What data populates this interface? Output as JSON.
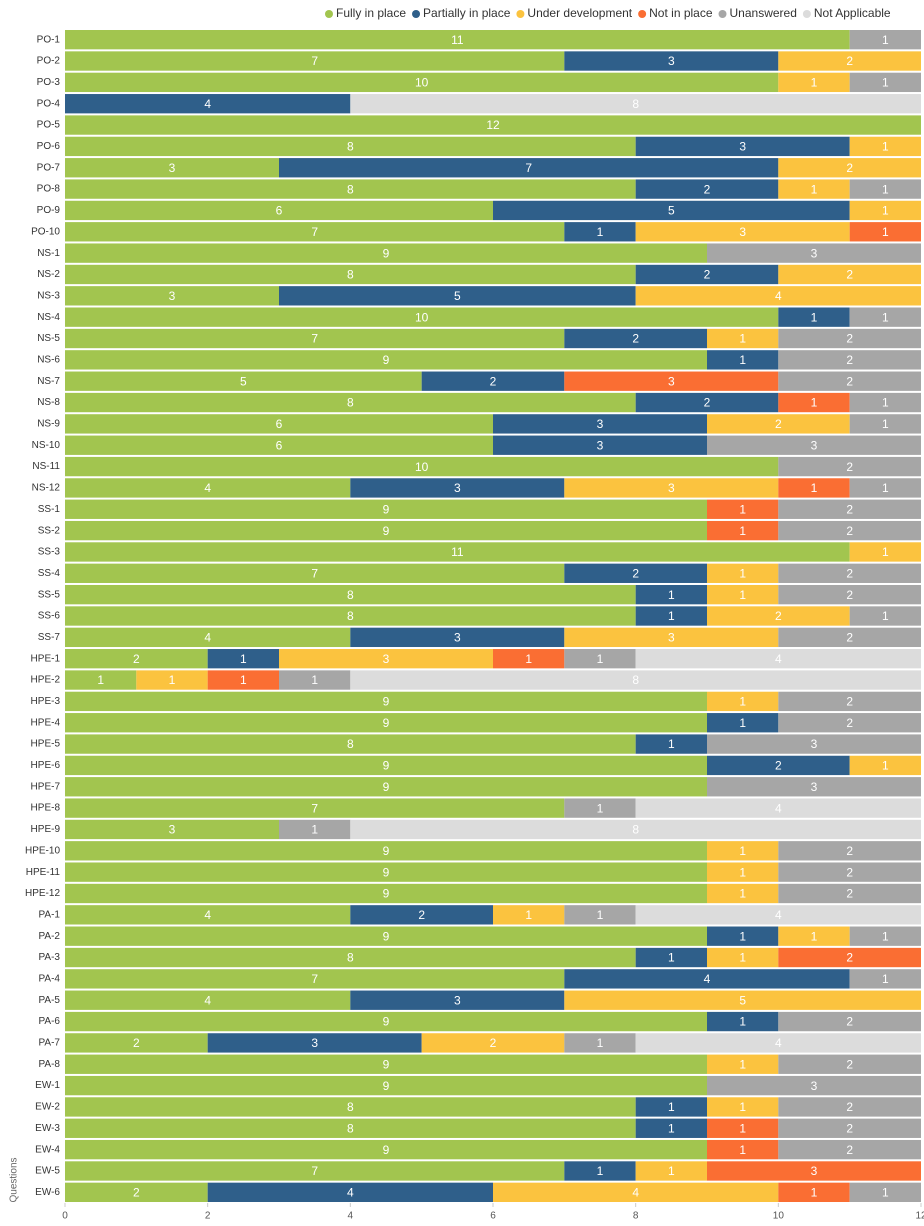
{
  "chart_data": {
    "type": "stacked-bar-horizontal",
    "y_label": "Questions",
    "categories": [
      "PO-1",
      "PO-2",
      "PO-3",
      "PO-4",
      "PO-5",
      "PO-6",
      "PO-7",
      "PO-8",
      "PO-9",
      "PO-10",
      "NS-1",
      "NS-2",
      "NS-3",
      "NS-4",
      "NS-5",
      "NS-6",
      "NS-7",
      "NS-8",
      "NS-9",
      "NS-10",
      "NS-11",
      "NS-12",
      "SS-1",
      "SS-2",
      "SS-3",
      "SS-4",
      "SS-5",
      "SS-6",
      "SS-7",
      "HPE-1",
      "HPE-2",
      "HPE-3",
      "HPE-4",
      "HPE-5",
      "HPE-6",
      "HPE-7",
      "HPE-8",
      "HPE-9",
      "HPE-10",
      "HPE-11",
      "HPE-12",
      "PA-1",
      "PA-2",
      "PA-3",
      "PA-4",
      "PA-5",
      "PA-6",
      "PA-7",
      "PA-8",
      "EW-1",
      "EW-2",
      "EW-3",
      "EW-4",
      "EW-5",
      "EW-6"
    ],
    "series": [
      {
        "name": "Fully in place",
        "color": "#a2c54f",
        "values": [
          11,
          7,
          10,
          null,
          12,
          8,
          3,
          8,
          6,
          7,
          9,
          8,
          3,
          10,
          7,
          9,
          5,
          8,
          6,
          6,
          10,
          4,
          9,
          9,
          11,
          7,
          8,
          8,
          4,
          2,
          1,
          9,
          9,
          8,
          9,
          9,
          7,
          3,
          9,
          9,
          9,
          4,
          9,
          8,
          7,
          4,
          9,
          2,
          9,
          9,
          8,
          8,
          9,
          7,
          2
        ]
      },
      {
        "name": "Partially in place",
        "color": "#2f5f8a",
        "values": [
          null,
          3,
          null,
          4,
          null,
          3,
          7,
          2,
          5,
          1,
          null,
          2,
          5,
          1,
          2,
          1,
          2,
          2,
          3,
          3,
          null,
          3,
          null,
          null,
          null,
          2,
          1,
          1,
          3,
          1,
          null,
          null,
          1,
          1,
          2,
          null,
          null,
          null,
          null,
          null,
          null,
          2,
          1,
          1,
          4,
          3,
          1,
          3,
          null,
          null,
          1,
          1,
          null,
          1,
          4
        ]
      },
      {
        "name": "Under development",
        "color": "#fbc33f",
        "values": [
          null,
          2,
          1,
          null,
          null,
          1,
          2,
          1,
          1,
          3,
          null,
          2,
          4,
          null,
          1,
          null,
          null,
          null,
          2,
          null,
          null,
          3,
          null,
          null,
          1,
          1,
          1,
          2,
          3,
          3,
          1,
          1,
          null,
          null,
          1,
          null,
          null,
          null,
          1,
          1,
          1,
          1,
          1,
          1,
          null,
          5,
          null,
          2,
          1,
          null,
          1,
          null,
          null,
          1,
          4
        ]
      },
      {
        "name": "Not in place",
        "color": "#fa6e33",
        "values": [
          null,
          null,
          null,
          null,
          null,
          null,
          null,
          null,
          null,
          1,
          null,
          null,
          null,
          null,
          null,
          null,
          3,
          1,
          null,
          null,
          null,
          1,
          1,
          1,
          null,
          null,
          null,
          null,
          null,
          1,
          1,
          null,
          null,
          null,
          null,
          null,
          null,
          null,
          null,
          null,
          null,
          null,
          null,
          2,
          null,
          null,
          null,
          null,
          null,
          null,
          null,
          1,
          1,
          3,
          1
        ]
      },
      {
        "name": "Unanswered",
        "color": "#a6a6a6",
        "values": [
          1,
          null,
          1,
          null,
          null,
          null,
          null,
          1,
          null,
          null,
          3,
          null,
          null,
          1,
          2,
          2,
          2,
          1,
          1,
          3,
          2,
          1,
          2,
          2,
          null,
          2,
          2,
          1,
          2,
          1,
          1,
          2,
          2,
          3,
          null,
          3,
          1,
          1,
          2,
          2,
          2,
          1,
          1,
          null,
          1,
          null,
          2,
          1,
          2,
          3,
          2,
          2,
          2,
          null,
          1
        ]
      },
      {
        "name": "Not Applicable",
        "color": "#dcdcdc",
        "values": [
          null,
          null,
          null,
          8,
          null,
          null,
          null,
          null,
          null,
          null,
          null,
          null,
          null,
          null,
          null,
          null,
          null,
          null,
          null,
          null,
          null,
          null,
          null,
          null,
          null,
          null,
          null,
          null,
          null,
          4,
          8,
          null,
          null,
          null,
          null,
          null,
          4,
          8,
          null,
          null,
          null,
          4,
          null,
          null,
          null,
          null,
          null,
          4,
          null,
          null,
          null,
          null,
          null,
          null,
          null
        ]
      }
    ],
    "xlim": [
      0,
      12
    ],
    "xticks": [
      0,
      2,
      4,
      6,
      8,
      10,
      12
    ]
  }
}
